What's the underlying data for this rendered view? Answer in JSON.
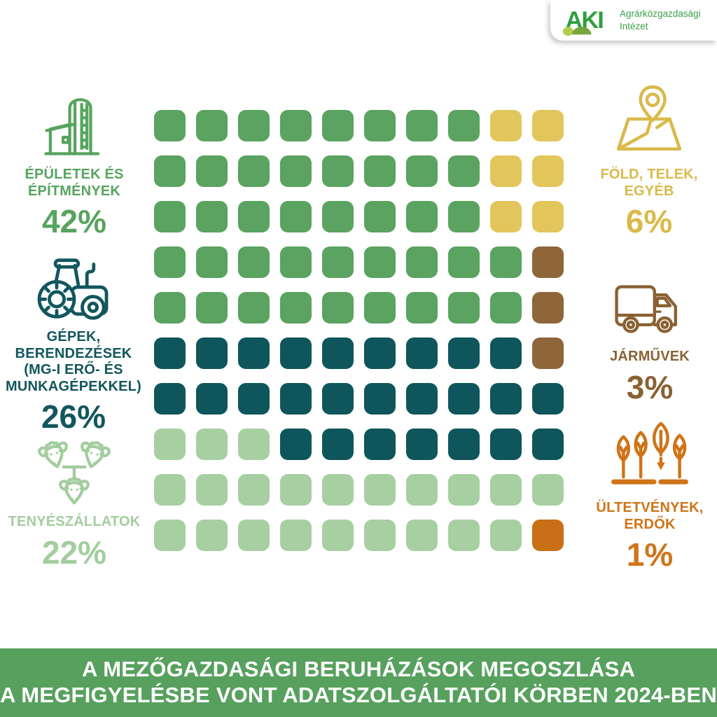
{
  "logo": {
    "brand": "AKI",
    "org": "Agrárközgazdasági\nIntézet",
    "colors": {
      "mark": "#2f9e41",
      "hill_light": "#b5cc4e",
      "hill_dark": "#7aa63e",
      "text": "#3aa047"
    }
  },
  "banner": {
    "line1": "A MEZŐGAZDASÁGI BERUHÁZÁSOK MEGOSZLÁSA",
    "line2": "A MEGFIGYELÉSBE VONT ADATSZOLGÁLTATÓI KÖRBEN 2024-BEN",
    "bg": "#57a05e"
  },
  "categories": [
    {
      "key": "buildings",
      "label": "ÉPÜLETEK ÉS\nÉPÍTMÉNYEK",
      "percent": "42%",
      "color": "#57a45f",
      "icon": "silo-barn-icon"
    },
    {
      "key": "machines",
      "label": "GÉPEK,\nBERENDEZÉSEK\n(MG-I ERŐ- ÉS\nMUNKAGÉPEKKEL)",
      "percent": "26%",
      "color": "#12565e",
      "icon": "tractor-icon"
    },
    {
      "key": "livestock",
      "label": "TENYÉSZÁLLATOK",
      "percent": "22%",
      "color": "#a3cd9e",
      "icon": "cattle-icon"
    },
    {
      "key": "land",
      "label": "FÖLD, TELEK,\nEGYÉB",
      "percent": "6%",
      "color": "#d9ba4a",
      "icon": "map-pin-icon"
    },
    {
      "key": "vehicles",
      "label": "JÁRMŰVEK",
      "percent": "3%",
      "color": "#8a6133",
      "icon": "truck-icon"
    },
    {
      "key": "plantations",
      "label": "ÜLTETVÉNYEK,\nERDŐK",
      "percent": "1%",
      "color": "#cf7418",
      "icon": "trees-icon"
    }
  ],
  "waffle": {
    "colors": {
      "G": "#5aa360",
      "Y": "#e2c65c",
      "T": "#0e565b",
      "B": "#8f6639",
      "L": "#a7cfa2",
      "O": "#c96f16"
    },
    "rows": [
      "GGGGGGGGYY",
      "GGGGGGGGYY",
      "GGGGGGGGYY",
      "GGGGGGGGGB",
      "GGGGGGGGGB",
      "TTTTTTTTTB",
      "TTTTTTTTTT",
      "LLLTTTTTTT",
      "LLLLLLLLLL",
      "LLLLLLLLLO"
    ]
  },
  "chart_data": {
    "type": "pie",
    "variant": "waffle 10x10, each square = 1%",
    "title": "A mezőgazdasági beruházások megoszlása a megfigyelésbe vont adatszolgáltatói körben 2024-ben",
    "categories": [
      "Épületek és építmények",
      "Gépek, berendezések (mg-i erő- és munkagépekkel)",
      "Tenyészállatok",
      "Föld, telek, egyéb",
      "Járművek",
      "Ültetvények, erdők"
    ],
    "values": [
      42,
      26,
      22,
      6,
      3,
      1
    ],
    "unit": "%",
    "colors": [
      "#5aa360",
      "#0e565b",
      "#a7cfa2",
      "#e2c65c",
      "#8f6639",
      "#c96f16"
    ],
    "legend_position": "sides",
    "grid": "off"
  }
}
